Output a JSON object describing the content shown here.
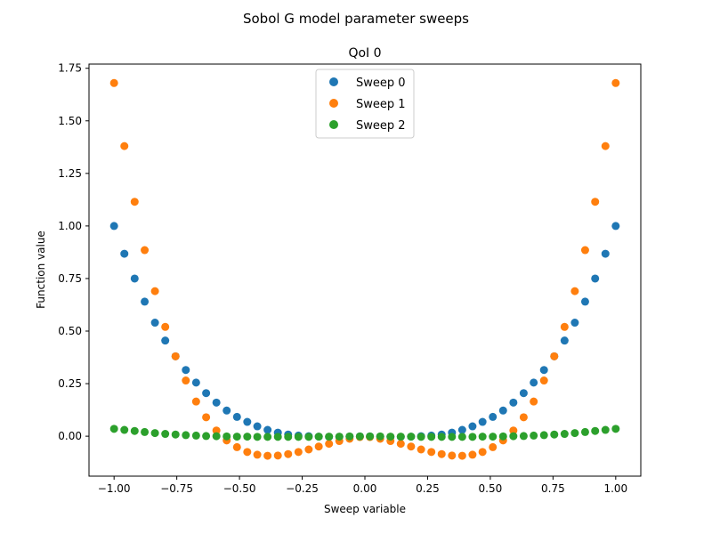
{
  "figure": {
    "suptitle": "Sobol G model parameter sweeps"
  },
  "chart_data": {
    "type": "scatter",
    "title": "QoI 0",
    "xlabel": "Sweep variable",
    "ylabel": "Function value",
    "xlim": [
      -1.1,
      1.1
    ],
    "ylim": [
      -0.19,
      1.77
    ],
    "xticks": [
      -1.0,
      -0.75,
      -0.5,
      -0.25,
      0.0,
      0.25,
      0.5,
      0.75,
      1.0
    ],
    "xtick_labels": [
      "−1.00",
      "−0.75",
      "−0.50",
      "−0.25",
      "0.00",
      "0.25",
      "0.50",
      "0.75",
      "1.00"
    ],
    "yticks": [
      0.0,
      0.25,
      0.5,
      0.75,
      1.0,
      1.25,
      1.5,
      1.75
    ],
    "ytick_labels": [
      "0.00",
      "0.25",
      "0.50",
      "0.75",
      "1.00",
      "1.25",
      "1.50",
      "1.75"
    ],
    "grid": false,
    "legend_position": "top-center",
    "x": [
      -1.0,
      -0.959,
      -0.918,
      -0.878,
      -0.837,
      -0.796,
      -0.755,
      -0.714,
      -0.673,
      -0.633,
      -0.592,
      -0.551,
      -0.51,
      -0.469,
      -0.429,
      -0.388,
      -0.347,
      -0.306,
      -0.265,
      -0.224,
      -0.184,
      -0.143,
      -0.102,
      -0.061,
      -0.02,
      0.02,
      0.061,
      0.102,
      0.143,
      0.184,
      0.224,
      0.265,
      0.306,
      0.347,
      0.388,
      0.429,
      0.469,
      0.51,
      0.551,
      0.592,
      0.633,
      0.673,
      0.714,
      0.755,
      0.796,
      0.837,
      0.878,
      0.918,
      0.959,
      1.0
    ],
    "series": [
      {
        "name": "Sweep 0",
        "color": "#1f77b4",
        "values": [
          1.0,
          0.868,
          0.75,
          0.64,
          0.54,
          0.455,
          0.38,
          0.315,
          0.255,
          0.205,
          0.16,
          0.122,
          0.092,
          0.068,
          0.047,
          0.03,
          0.017,
          0.008,
          0.003,
          0.0,
          -0.002,
          -0.003,
          -0.003,
          -0.002,
          -0.001,
          -0.001,
          -0.002,
          -0.003,
          -0.003,
          -0.002,
          0.0,
          0.003,
          0.008,
          0.017,
          0.03,
          0.047,
          0.068,
          0.092,
          0.122,
          0.16,
          0.205,
          0.255,
          0.315,
          0.38,
          0.455,
          0.54,
          0.64,
          0.75,
          0.868,
          1.0
        ]
      },
      {
        "name": "Sweep 1",
        "color": "#ff7f0e",
        "values": [
          1.68,
          1.38,
          1.115,
          0.885,
          0.69,
          0.52,
          0.38,
          0.265,
          0.165,
          0.09,
          0.027,
          -0.02,
          -0.052,
          -0.075,
          -0.088,
          -0.093,
          -0.092,
          -0.085,
          -0.075,
          -0.063,
          -0.049,
          -0.036,
          -0.023,
          -0.012,
          -0.004,
          -0.004,
          -0.012,
          -0.023,
          -0.036,
          -0.049,
          -0.063,
          -0.075,
          -0.085,
          -0.092,
          -0.093,
          -0.088,
          -0.075,
          -0.052,
          -0.02,
          0.027,
          0.09,
          0.165,
          0.265,
          0.38,
          0.52,
          0.69,
          0.885,
          1.115,
          1.38,
          1.68
        ]
      },
      {
        "name": "Sweep 2",
        "color": "#2ca02c",
        "values": [
          0.035,
          0.03,
          0.025,
          0.02,
          0.015,
          0.011,
          0.008,
          0.005,
          0.003,
          0.001,
          0.0,
          -0.001,
          -0.002,
          -0.002,
          -0.003,
          -0.003,
          -0.003,
          -0.003,
          -0.003,
          -0.003,
          -0.002,
          -0.002,
          -0.002,
          -0.001,
          -0.001,
          -0.001,
          -0.001,
          -0.002,
          -0.002,
          -0.002,
          -0.003,
          -0.003,
          -0.003,
          -0.003,
          -0.003,
          -0.003,
          -0.002,
          -0.002,
          -0.001,
          0.0,
          0.001,
          0.003,
          0.005,
          0.008,
          0.011,
          0.015,
          0.02,
          0.025,
          0.03,
          0.035
        ]
      }
    ]
  }
}
